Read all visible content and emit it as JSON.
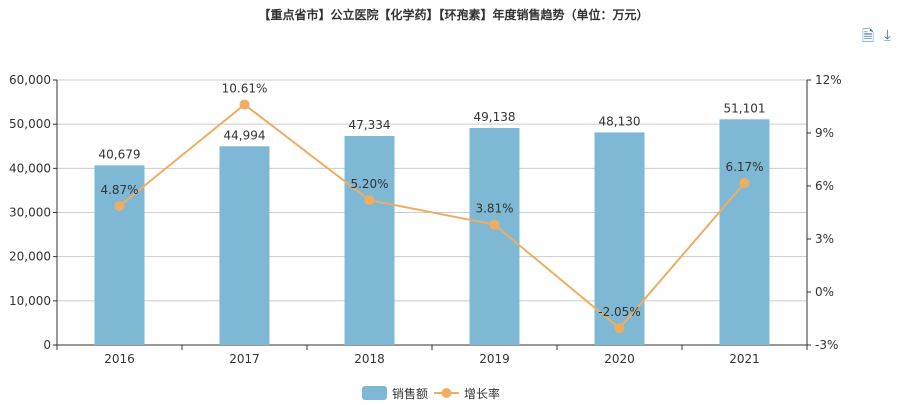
{
  "chart_data": {
    "type": "bar+line",
    "title": "【重点省市】公立医院【化学药】【环孢素】年度销售趋势（单位：万元）",
    "categories": [
      "2016",
      "2017",
      "2018",
      "2019",
      "2020",
      "2021"
    ],
    "series": [
      {
        "name": "销售额",
        "type": "bar",
        "axis": "left",
        "values": [
          40679,
          44994,
          47334,
          49138,
          48130,
          51101
        ],
        "labels": [
          "40,679",
          "44,994",
          "47,334",
          "49,138",
          "48,130",
          "51,101"
        ],
        "color": "#7fb8d4"
      },
      {
        "name": "增长率",
        "type": "line",
        "axis": "right",
        "values": [
          4.87,
          10.61,
          5.2,
          3.81,
          -2.05,
          6.17
        ],
        "labels": [
          "4.87%",
          "10.61%",
          "5.20%",
          "3.81%",
          "-2.05%",
          "6.17%"
        ],
        "color": "#f0ad62"
      }
    ],
    "left_axis": {
      "ylim": [
        0,
        60000
      ],
      "ticks": [
        "0",
        "10,000",
        "20,000",
        "30,000",
        "40,000",
        "50,000",
        "60,000"
      ]
    },
    "right_axis": {
      "ylim": [
        -3,
        12
      ],
      "ticks": [
        "-3%",
        "0%",
        "3%",
        "6%",
        "9%",
        "12%"
      ]
    },
    "grid": true,
    "legend": "bottom"
  },
  "toolbox": {
    "data_view_icon": "document-icon",
    "download_icon": "download-icon"
  }
}
